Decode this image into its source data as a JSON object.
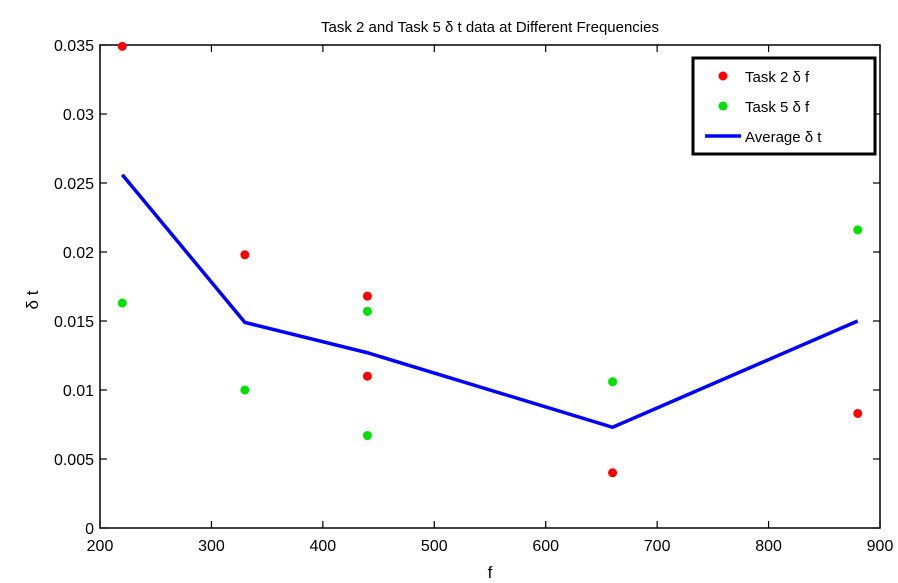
{
  "chart_data": {
    "type": "scatter",
    "title": "Task 2 and Task 5 δ t data at Different Frequencies",
    "xlabel": "f",
    "ylabel": "δ t",
    "xlim": [
      200,
      900
    ],
    "ylim": [
      0,
      0.035
    ],
    "xticks": [
      200,
      300,
      400,
      500,
      600,
      700,
      800,
      900
    ],
    "yticks": [
      0,
      0.005,
      0.01,
      0.015,
      0.02,
      0.025,
      0.03,
      0.035
    ],
    "xtick_labels": [
      "200",
      "300",
      "400",
      "500",
      "600",
      "700",
      "800",
      "900"
    ],
    "ytick_labels": [
      "0",
      "0.005",
      "0.01",
      "0.015",
      "0.02",
      "0.025",
      "0.03",
      "0.035"
    ],
    "grid": false,
    "legend_position": "top-right",
    "series": [
      {
        "name": "Task 2 δ f",
        "kind": "scatter",
        "color": "#ff0000",
        "x": [
          220,
          330,
          440,
          440,
          660,
          880
        ],
        "y": [
          0.0349,
          0.0198,
          0.0168,
          0.011,
          0.004,
          0.0083
        ]
      },
      {
        "name": "Task 5 δ f",
        "kind": "scatter",
        "color": "#00e000",
        "x": [
          220,
          330,
          440,
          440,
          660,
          880
        ],
        "y": [
          0.0163,
          0.01,
          0.0157,
          0.0067,
          0.0106,
          0.0216
        ]
      },
      {
        "name": "Average δ t",
        "kind": "line",
        "color": "#0000ff",
        "x": [
          220,
          330,
          440,
          660,
          880
        ],
        "y": [
          0.0256,
          0.0149,
          0.0127,
          0.0073,
          0.015
        ]
      }
    ]
  }
}
